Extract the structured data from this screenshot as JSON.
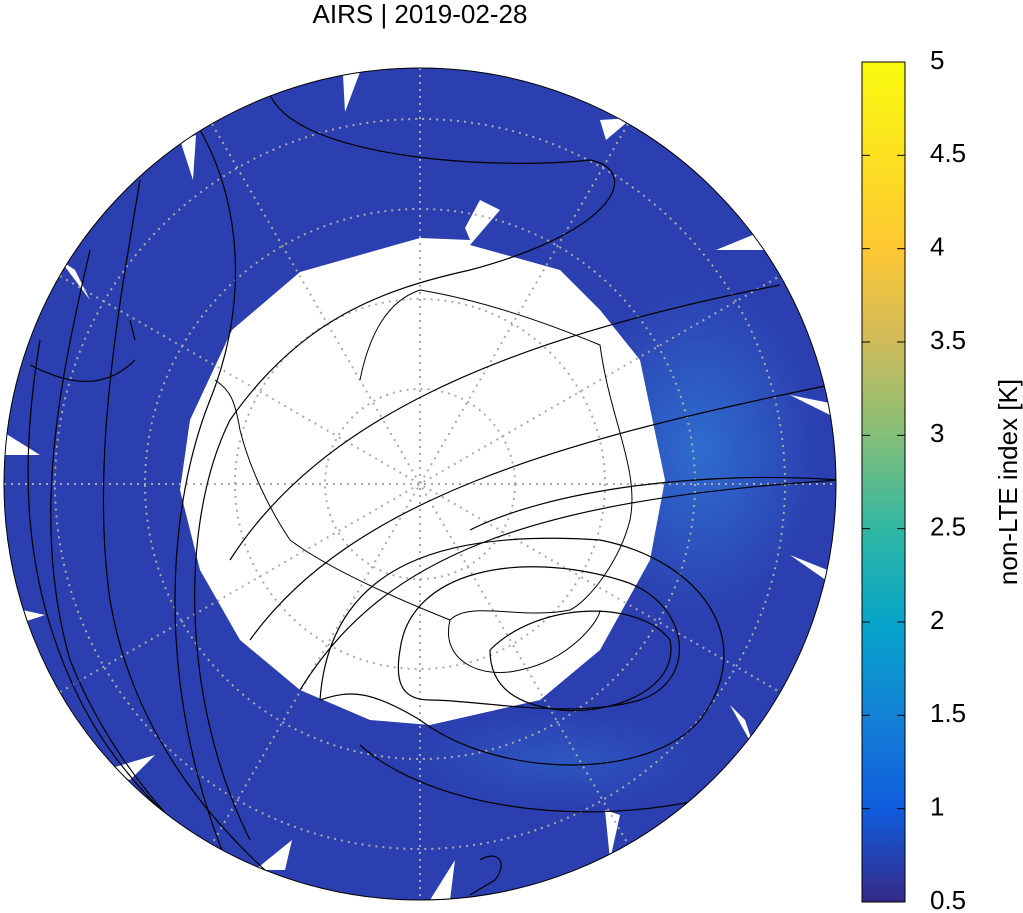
{
  "title": "AIRS | 2019-02-28",
  "colorbar": {
    "label": "non-LTE index [K]",
    "lim": [
      0.5,
      5
    ],
    "ticks": [
      0.5,
      1,
      1.5,
      2,
      2.5,
      3,
      3.5,
      4,
      4.5,
      5
    ]
  }
}
